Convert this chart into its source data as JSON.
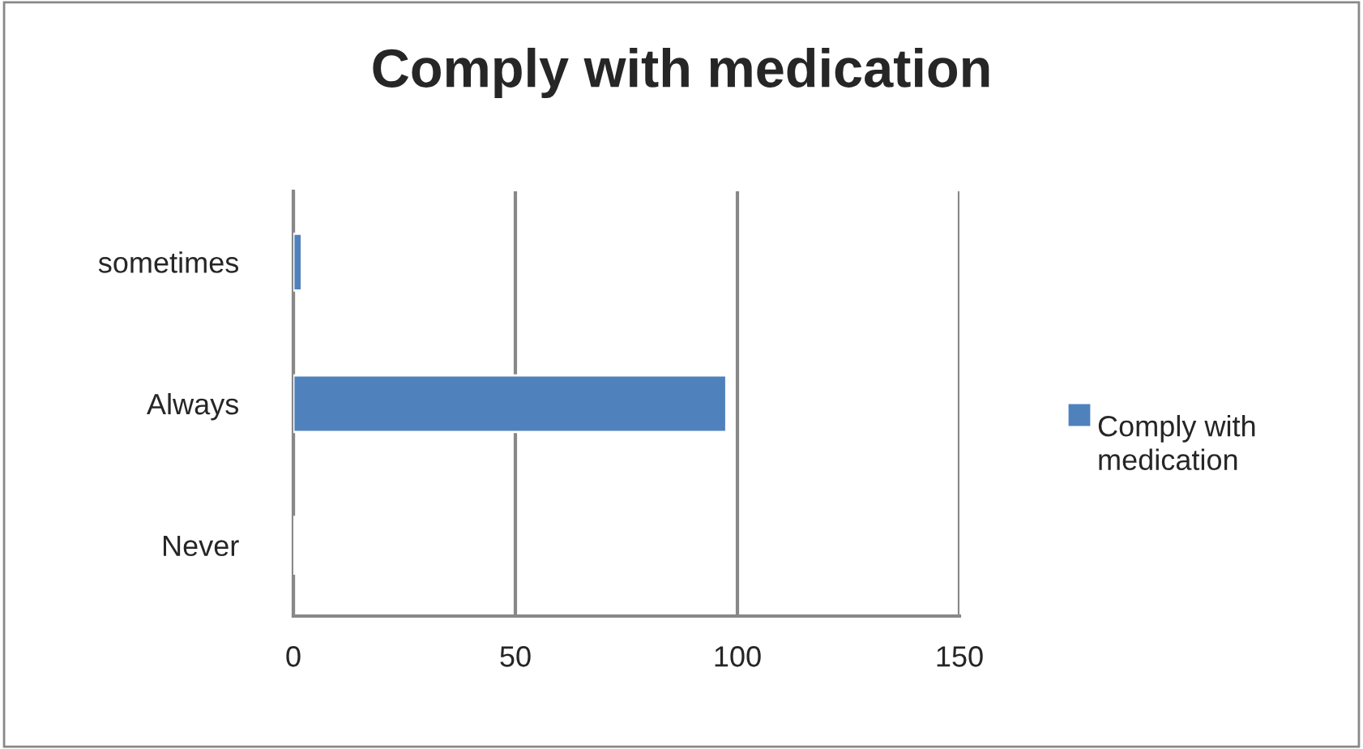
{
  "chart_data": {
    "type": "bar",
    "orientation": "horizontal",
    "title": "Comply with medication",
    "categories": [
      "sometimes",
      "Always",
      "Never"
    ],
    "series": [
      {
        "name": "Comply with medication",
        "color": "#4f81bd",
        "values": [
          1.9,
          97.5,
          0.5
        ]
      }
    ],
    "xlim": [
      0,
      150
    ],
    "xticks": [
      0,
      50,
      100,
      150
    ],
    "grid": "x",
    "legend": "right"
  }
}
